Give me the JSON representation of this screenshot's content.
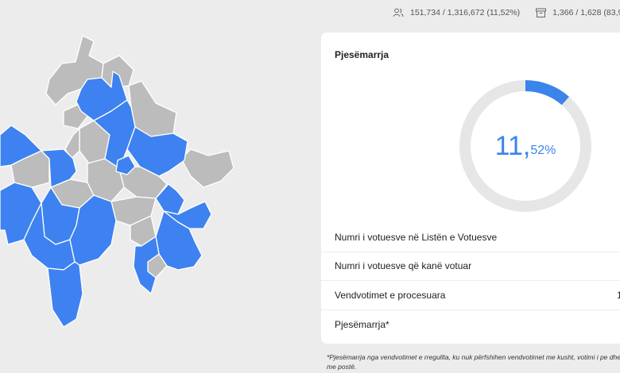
{
  "topbar": {
    "voters_stat": "151,734 / 1,316,672 (11,52%)",
    "stations_stat": "1,366 / 1,628 (83,9"
  },
  "card": {
    "title": "Pjesëmarrja",
    "turnout": {
      "integer": "11",
      "separator": ",",
      "decimal": "52%",
      "fraction": 0.1152
    },
    "rows": [
      {
        "label": "Numri i votuesve në Listën e Votuesve",
        "value": ""
      },
      {
        "label": "Numri i votuesve që kanë votuar",
        "value": ""
      },
      {
        "label": "Vendvotimet e procesuara",
        "value": "1"
      },
      {
        "label": "Pjesëmarrja*",
        "value": ""
      }
    ]
  },
  "footnote": "*Pjesëmarrja nga vendvotimet e rregullta, ku nuk përfshihen vendvotimet me kusht, votimi i pe dhe me postë.",
  "colors": {
    "accent": "#3a84ea",
    "ring_track": "#e6e6e6",
    "map_reporting": "#3d82f0",
    "map_pending": "#bcbcbc",
    "background": "#ececec"
  }
}
